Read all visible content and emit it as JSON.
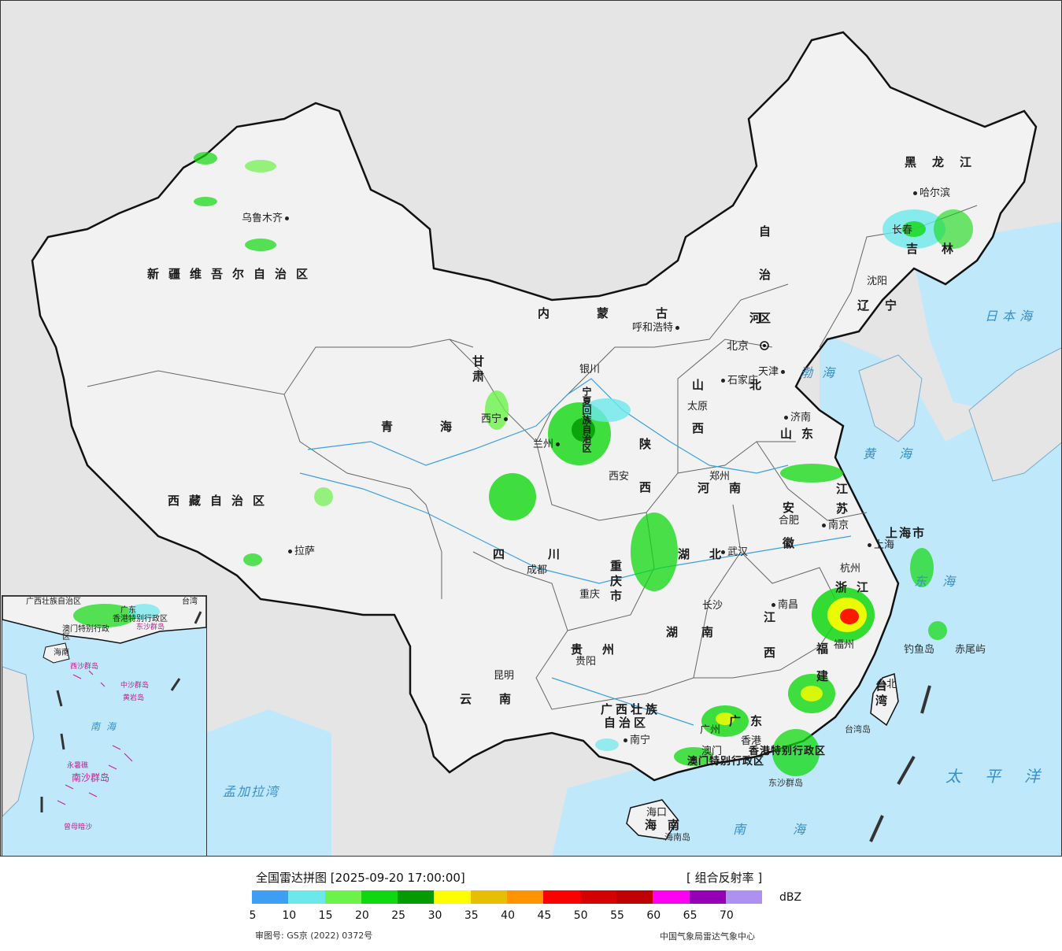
{
  "map": {
    "provinces": {
      "xinjiang": "新疆维吾尔自治区",
      "xizang": "西藏自治区",
      "qinghai": "青海",
      "gansu": "甘肃",
      "neimenggu_1": "内蒙古",
      "neimenggu_2": "自治区",
      "ningxia": "宁夏回族自治区",
      "shaanxi": "陕西",
      "shanxi": "山西",
      "hebei": "河北",
      "shandong": "山东",
      "henan": "河南",
      "sichuan": "四川",
      "chongqing": "重庆市",
      "hubei": "湖北",
      "hunan": "湖南",
      "guizhou": "贵州",
      "yunnan": "云南",
      "guangxi_1": "广西壮族",
      "guangxi_2": "自治区",
      "guangdong": "广东",
      "jiangxi": "江西",
      "fujian": "福建",
      "zhejiang": "浙江",
      "anhui": "安徽",
      "jiangsu": "江苏",
      "shanghai": "上海市",
      "liaoning": "辽宁",
      "jilin": "吉林",
      "heilongjiang": "黑龙江",
      "hainan": "海南",
      "taiwan": "台湾",
      "hongkong": "香港特别行政区",
      "macao": "澳门特别行政区"
    },
    "cities": {
      "urumqi": "乌鲁木齐",
      "lhasa": "拉萨",
      "xining": "西宁",
      "lanzhou": "兰州",
      "yinchuan": "银川",
      "hohhot": "呼和浩特",
      "beijing": "北京",
      "tianjin": "天津",
      "shijiazhuang": "石家庄",
      "taiyuan": "太原",
      "jinan": "济南",
      "zhengzhou": "郑州",
      "xian": "西安",
      "chengdu": "成都",
      "chongqing": "重庆",
      "wuhan": "武汉",
      "hefei": "合肥",
      "nanjing": "南京",
      "shanghai": "上海",
      "hangzhou": "杭州",
      "nanchang": "南昌",
      "changsha": "长沙",
      "guiyang": "贵阳",
      "kunming": "昆明",
      "nanning": "南宁",
      "guangzhou": "广州",
      "hongkong": "香港",
      "macao": "澳门",
      "fuzhou": "福州",
      "taibei": "台北",
      "haikou": "海口",
      "shenyang": "沈阳",
      "changchun": "长春",
      "harbin": "哈尔滨"
    },
    "seas": {
      "japan": "日本海",
      "bohai": "渤海",
      "yellow": "黄海",
      "east": "东海",
      "south": "南海",
      "pacific": "太平洋",
      "bengal": "孟加拉湾"
    },
    "islands": {
      "diaoyu": "钓鱼岛",
      "chiwei": "赤尾屿",
      "taiwan_island": "台湾岛",
      "hainan_island": "海南岛",
      "dongsha": "东沙群岛"
    },
    "inset": {
      "guangxi": "广西壮族自治区",
      "guangdong": "广东",
      "macao": "澳门特别行政区",
      "hongkong": "香港特别行政区",
      "hainan": "海南",
      "xisha": "西沙群岛",
      "zhongsha": "中沙群岛",
      "huangyan": "黄岩岛",
      "nansha": "南沙群岛",
      "yongshu": "永暑礁",
      "zengmu": "曾母暗沙",
      "south_sea": "南海",
      "taiwan": "台湾",
      "dongsha": "东沙群岛"
    }
  },
  "legend": {
    "title": "全国雷达拼图 [2025-09-20 17:00:00]",
    "product": "[ 组合反射率 ]",
    "unit": "dBZ",
    "ticks": [
      "5",
      "10",
      "15",
      "20",
      "25",
      "30",
      "35",
      "40",
      "45",
      "50",
      "55",
      "60",
      "65",
      "70"
    ],
    "colors": [
      "#3d9ef2",
      "#6ce8ec",
      "#6cf24a",
      "#10d810",
      "#049a04",
      "#fefe00",
      "#e6c000",
      "#fe9400",
      "#fe0000",
      "#d60000",
      "#c00000",
      "#ff00f0",
      "#9600b4",
      "#ad90f0"
    ],
    "approval": "审图号: GS京 (2022) 0372号",
    "source": "中国气象局雷达气象中心"
  }
}
